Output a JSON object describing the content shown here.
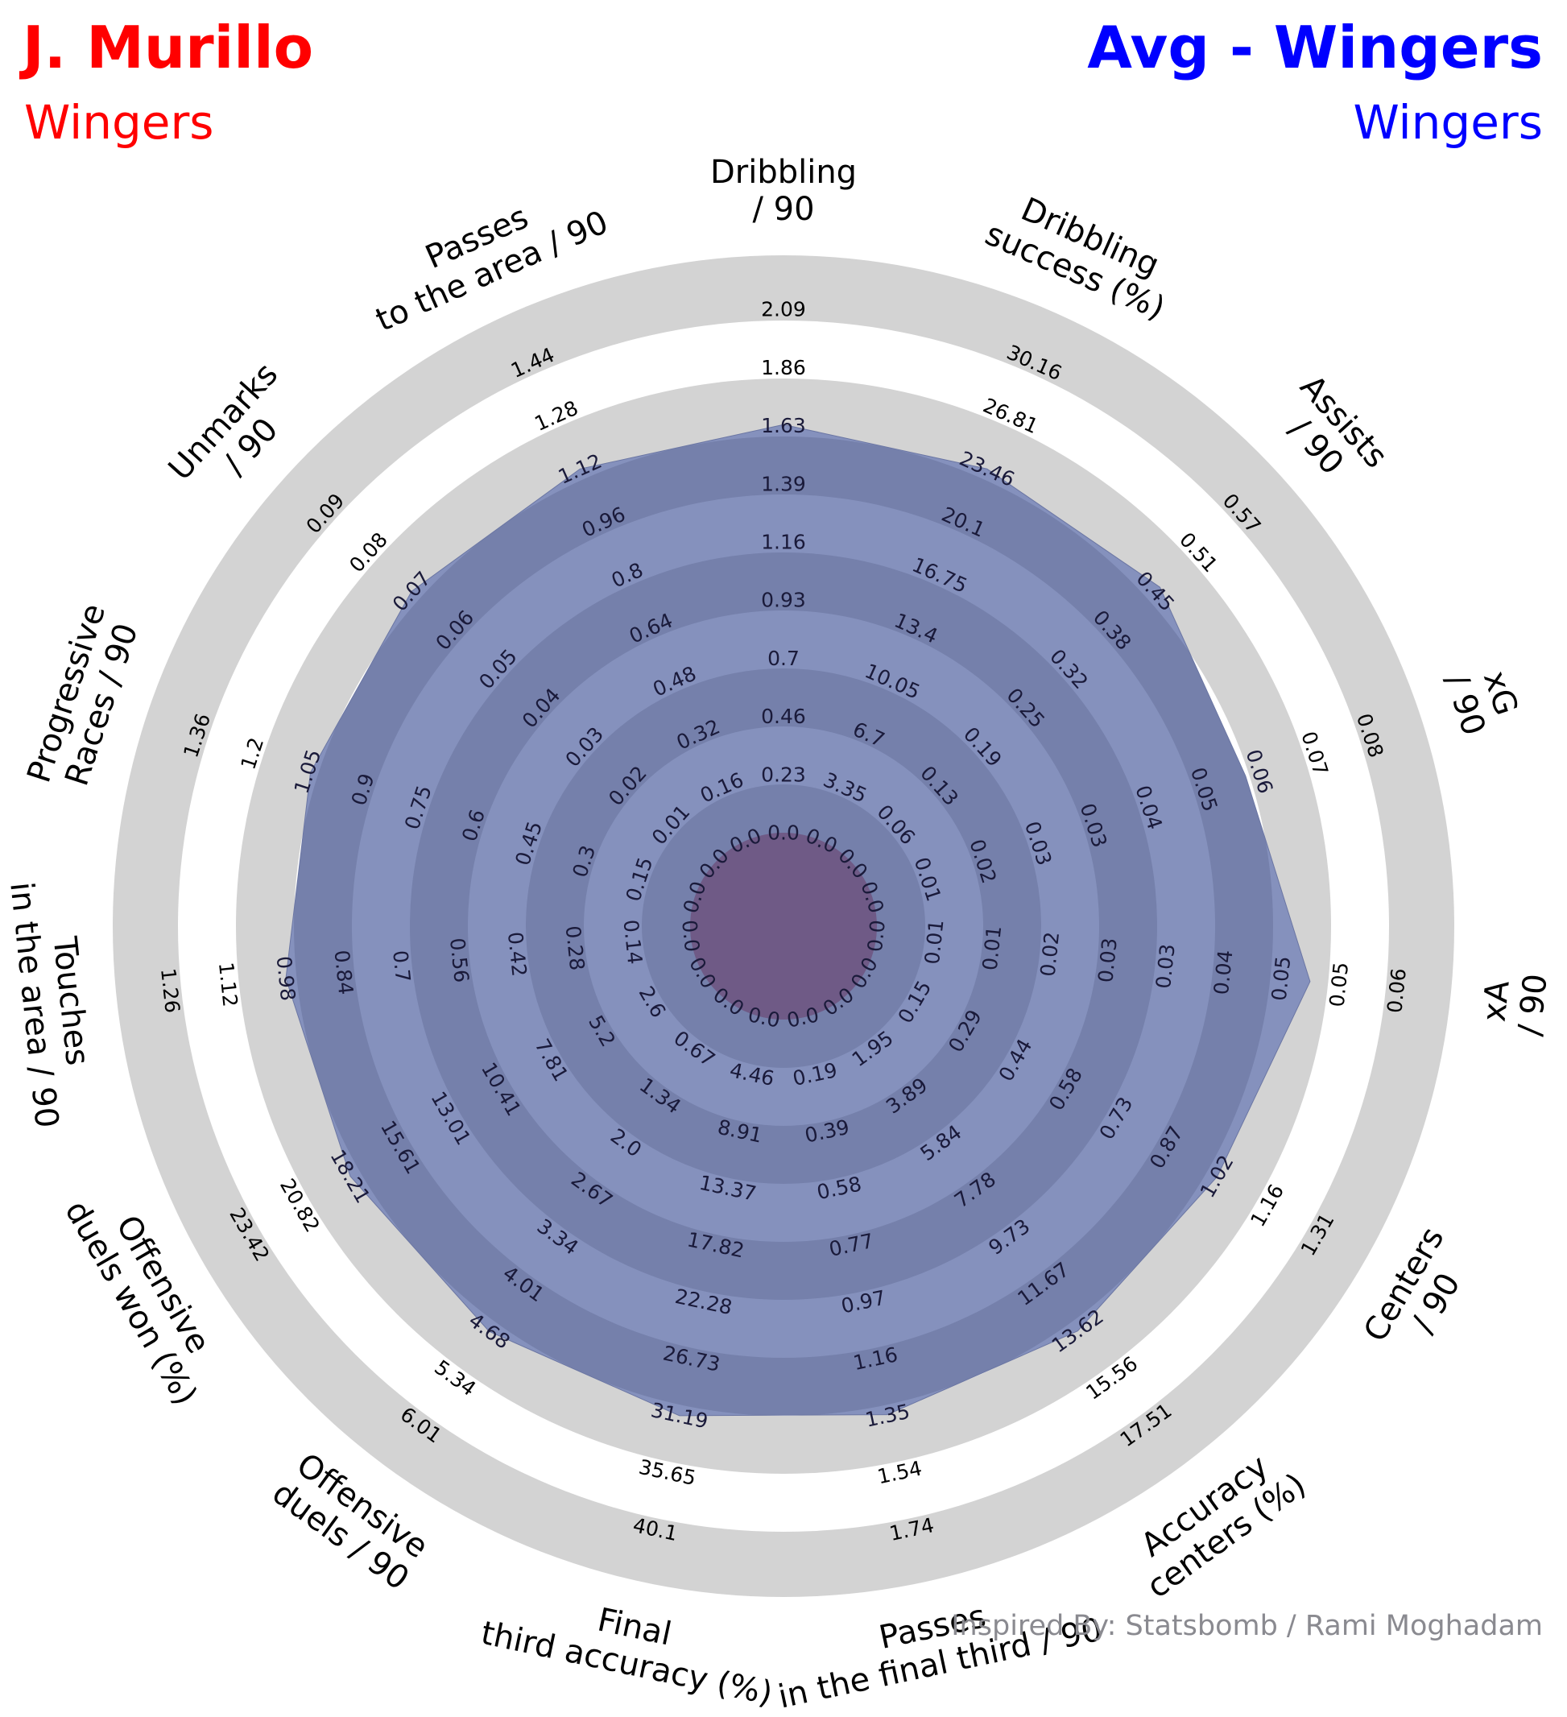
{
  "header": {
    "player": {
      "name": "J. Murillo",
      "subtitle": "Wingers",
      "color": "#ff0000"
    },
    "comparison": {
      "name": "Avg - Wingers",
      "subtitle": "Wingers",
      "color": "#0000ff"
    }
  },
  "credit": "Inspired By: Statsbomb / Rami Moghadam",
  "colors": {
    "ring_light": "#d3d3d3",
    "ring_dark": "#ffffff",
    "band_dark": "#7580ab",
    "band_light": "#8591bd",
    "player_fill": "#b8bfd8",
    "comparison_fill": "#6f5a86",
    "tick_text_inner": "#1a1a3a",
    "tick_text_outer": "#000000"
  },
  "chart_data": {
    "type": "radar",
    "title": "",
    "axes": [
      {
        "label": [
          "Dribbling",
          "/ 90"
        ],
        "ticks": [
          "0.0",
          "0.23",
          "0.46",
          "0.7",
          "0.93",
          "1.16",
          "1.39",
          "1.63",
          "1.86",
          "2.09"
        ]
      },
      {
        "label": [
          "Dribbling",
          "success (%)"
        ],
        "ticks": [
          "0.0",
          "3.35",
          "6.7",
          "10.05",
          "13.4",
          "16.75",
          "20.1",
          "23.46",
          "26.81",
          "30.16"
        ]
      },
      {
        "label": [
          "Assists",
          "/ 90"
        ],
        "ticks": [
          "0.0",
          "0.06",
          "0.13",
          "0.19",
          "0.25",
          "0.32",
          "0.38",
          "0.45",
          "0.51",
          "0.57"
        ]
      },
      {
        "label": [
          "xG",
          "/ 90"
        ],
        "ticks": [
          "0.0",
          "0.01",
          "0.02",
          "0.03",
          "0.03",
          "0.04",
          "0.05",
          "0.06",
          "0.07",
          "0.08"
        ]
      },
      {
        "label": [
          "xA",
          "/ 90"
        ],
        "ticks": [
          "0.0",
          "0.01",
          "0.01",
          "0.02",
          "0.03",
          "0.03",
          "0.04",
          "0.05",
          "0.05",
          "0.06"
        ]
      },
      {
        "label": [
          "Centers",
          "/ 90"
        ],
        "ticks": [
          "0.0",
          "0.15",
          "0.29",
          "0.44",
          "0.58",
          "0.73",
          "0.87",
          "1.02",
          "1.16",
          "1.31"
        ]
      },
      {
        "label": [
          "Accuracy",
          "centers (%)"
        ],
        "ticks": [
          "0.0",
          "1.95",
          "3.89",
          "5.84",
          "7.78",
          "9.73",
          "11.67",
          "13.62",
          "15.56",
          "17.51"
        ]
      },
      {
        "label": [
          "Passes",
          "in the final third / 90"
        ],
        "ticks": [
          "0.0",
          "0.19",
          "0.39",
          "0.58",
          "0.77",
          "0.97",
          "1.16",
          "1.35",
          "1.54",
          "1.74"
        ]
      },
      {
        "label": [
          "Final",
          "third accuracy (%)"
        ],
        "ticks": [
          "0.0",
          "4.46",
          "8.91",
          "13.37",
          "17.82",
          "22.28",
          "26.73",
          "31.19",
          "35.65",
          "40.1"
        ]
      },
      {
        "label": [
          "Offensive",
          "duels / 90"
        ],
        "ticks": [
          "0.0",
          "0.67",
          "1.34",
          "2.0",
          "2.67",
          "3.34",
          "4.01",
          "4.68",
          "5.34",
          "6.01"
        ]
      },
      {
        "label": [
          "Offensive",
          "duels won (%)"
        ],
        "ticks": [
          "0.0",
          "2.6",
          "5.2",
          "7.81",
          "10.41",
          "13.01",
          "15.61",
          "18.21",
          "20.82",
          "23.42"
        ]
      },
      {
        "label": [
          "Touches",
          "in the area / 90"
        ],
        "ticks": [
          "0.0",
          "0.14",
          "0.28",
          "0.42",
          "0.56",
          "0.7",
          "0.84",
          "0.98",
          "1.12",
          "1.26"
        ]
      },
      {
        "label": [
          "Progressive",
          "Races / 90"
        ],
        "ticks": [
          "0.0",
          "0.15",
          "0.3",
          "0.45",
          "0.6",
          "0.75",
          "0.9",
          "1.05",
          "1.2",
          "1.36"
        ]
      },
      {
        "label": [
          "Unmarks",
          "/ 90"
        ],
        "ticks": [
          "0.0",
          "0.01",
          "0.02",
          "0.03",
          "0.04",
          "0.05",
          "0.06",
          "0.07",
          "0.08",
          "0.09"
        ]
      },
      {
        "label": [
          "Passes",
          "to the area / 90"
        ],
        "ticks": [
          "0.0",
          "0.16",
          "0.32",
          "0.48",
          "0.64",
          "0.8",
          "0.96",
          "1.12",
          "1.28",
          "1.44"
        ]
      }
    ],
    "series": [
      {
        "name": "J. Murillo",
        "values": [
          0,
          0,
          0,
          0,
          0,
          0,
          0,
          0,
          0,
          0,
          0,
          0,
          0,
          0,
          0
        ]
      },
      {
        "name": "Avg - Wingers",
        "values": [
          1.63,
          23.46,
          0.45,
          0.06,
          0.05,
          1.02,
          13.62,
          1.35,
          31.19,
          4.68,
          18.21,
          0.98,
          1.05,
          0.07,
          1.12
        ]
      }
    ]
  }
}
